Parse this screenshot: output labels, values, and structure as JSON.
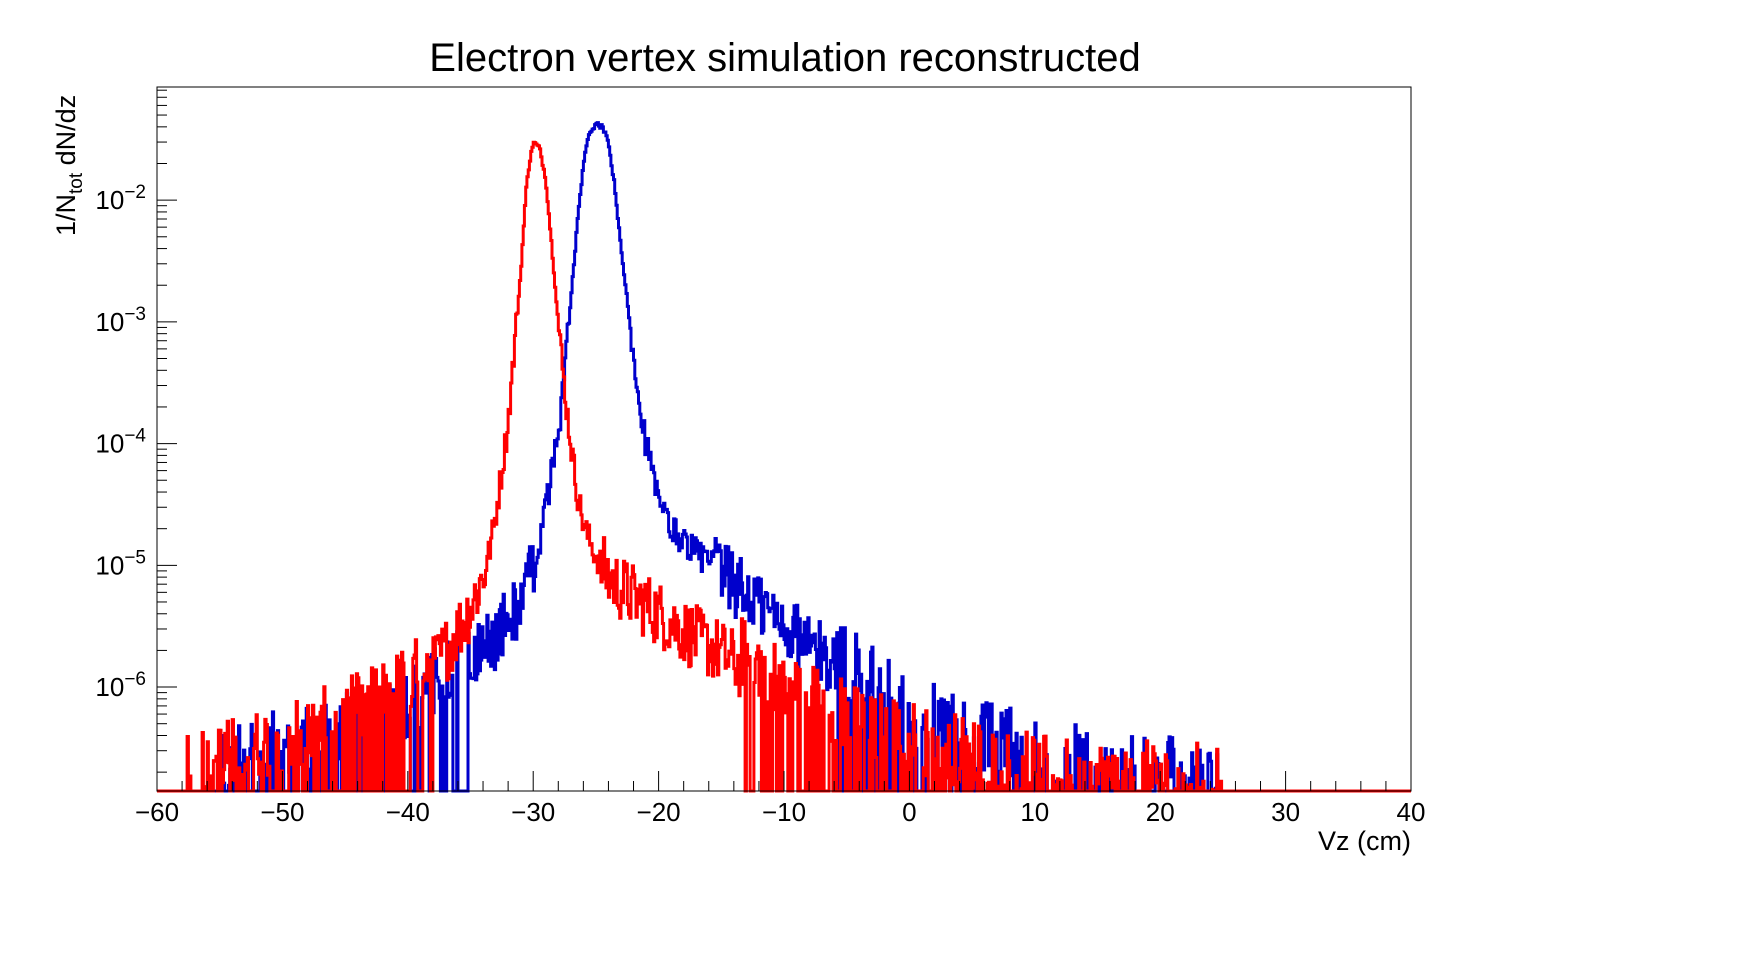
{
  "chart_data": {
    "type": "line",
    "title": "Electron vertex simulation reconstructed",
    "xlabel": "Vz (cm)",
    "ylabel": {
      "main": "1/N",
      "sub": "tot",
      "rest": " dN/dz"
    },
    "xlim": [
      -60,
      40
    ],
    "ylim": [
      1.4e-07,
      0.085
    ],
    "y_scale": "log",
    "x_ticks": [
      {
        "value": -60,
        "label": "−60"
      },
      {
        "value": -50,
        "label": "−50"
      },
      {
        "value": -40,
        "label": "−40"
      },
      {
        "value": -30,
        "label": "−30"
      },
      {
        "value": -20,
        "label": "−20"
      },
      {
        "value": -10,
        "label": "−10"
      },
      {
        "value": 0,
        "label": "0"
      },
      {
        "value": 10,
        "label": "10"
      },
      {
        "value": 20,
        "label": "20"
      },
      {
        "value": 30,
        "label": "30"
      },
      {
        "value": 40,
        "label": "40"
      }
    ],
    "y_ticks": [
      {
        "value": 1e-06,
        "base": "10",
        "exp": "−6"
      },
      {
        "value": 1e-05,
        "base": "10",
        "exp": "−5"
      },
      {
        "value": 0.0001,
        "base": "10",
        "exp": "−4"
      },
      {
        "value": 0.001,
        "base": "10",
        "exp": "−3"
      },
      {
        "value": 0.01,
        "base": "10",
        "exp": "−2"
      }
    ],
    "grid": false,
    "legend": "none",
    "series": [
      {
        "color": "#0000cc",
        "x": [
          -55,
          -52,
          -50,
          -48,
          -46,
          -44,
          -42,
          -40,
          -38,
          -36,
          -35,
          -34,
          -33,
          -32,
          -31,
          -30,
          -29.5,
          -29,
          -28.5,
          -28,
          -27.5,
          -27,
          -26.5,
          -26,
          -25.5,
          -25,
          -24.5,
          -24,
          -23.5,
          -23,
          -22.5,
          -22,
          -21.5,
          -21,
          -20.5,
          -20,
          -19,
          -18,
          -17,
          -16,
          -15,
          -14,
          -13,
          -12,
          -11,
          -10,
          -9,
          -8,
          -7,
          -6,
          -5,
          -4,
          -3,
          -2,
          -1,
          0,
          2,
          4,
          6,
          8,
          10,
          12,
          14,
          16,
          18,
          20,
          22,
          25
        ],
        "y": [
          1.6e-07,
          2.2e-07,
          2.5e-07,
          2.8e-07,
          3.2e-07,
          3.6e-07,
          4.5e-07,
          5.5e-07,
          8e-07,
          1.2e-06,
          1.5e-06,
          2e-06,
          2.6e-06,
          3.5e-06,
          5e-06,
          9e-06,
          1.5e-05,
          3e-05,
          6e-05,
          0.00012,
          0.0004,
          0.0015,
          0.006,
          0.02,
          0.036,
          0.042,
          0.04,
          0.03,
          0.013,
          0.004,
          0.0015,
          0.00055,
          0.00022,
          0.0001,
          6e-05,
          3.2e-05,
          2e-05,
          1.6e-05,
          1.3e-05,
          1.05e-05,
          8.5e-06,
          7e-06,
          5.8e-06,
          4.8e-06,
          4e-06,
          3.3e-06,
          2.7e-06,
          2.2e-06,
          1.8e-06,
          1.5e-06,
          1.2e-06,
          1e-06,
          8.5e-07,
          7e-07,
          5.8e-07,
          5e-07,
          4e-07,
          3.5e-07,
          3e-07,
          2.6e-07,
          2.3e-07,
          2e-07,
          1.8e-07,
          1.6e-07,
          1.5e-07,
          1.5e-07,
          1.5e-07,
          1.4e-07
        ]
      },
      {
        "color": "#ff0000",
        "x": [
          -58,
          -55,
          -52,
          -50,
          -48,
          -46,
          -44,
          -42,
          -40,
          -39,
          -38,
          -37,
          -36,
          -35,
          -34,
          -33.5,
          -33,
          -32.5,
          -32,
          -31.5,
          -31,
          -30.5,
          -30,
          -29.5,
          -29,
          -28.5,
          -28,
          -27.5,
          -27,
          -26.5,
          -26,
          -25.5,
          -25,
          -24,
          -23,
          -22,
          -21,
          -20,
          -19,
          -18,
          -17,
          -16,
          -15,
          -14,
          -13,
          -12,
          -11,
          -10,
          -9,
          -8,
          -7,
          -6,
          -5,
          -4,
          -2,
          0,
          2,
          4,
          6,
          8,
          10,
          12,
          14,
          16,
          20,
          25
        ],
        "y": [
          1.5e-07,
          2e-07,
          2.5e-07,
          3e-07,
          3.5e-07,
          4e-07,
          5e-07,
          6.5e-07,
          8.5e-07,
          1.05e-06,
          1.4e-06,
          2e-06,
          2.9e-06,
          4.5e-06,
          8e-06,
          1.3e-05,
          2.5e-05,
          6e-05,
          0.00015,
          0.0006,
          0.0025,
          0.015,
          0.03,
          0.027,
          0.015,
          0.004,
          0.001,
          0.00028,
          0.0001,
          4e-05,
          2.2e-05,
          1.6e-05,
          1.2e-05,
          8e-06,
          6.5e-06,
          5.5e-06,
          4.7e-06,
          4e-06,
          3.4e-06,
          2.9e-06,
          2.5e-06,
          2.2e-06,
          1.9e-06,
          1.6e-06,
          1.4e-06,
          1.2e-06,
          1e-06,
          8.5e-07,
          7.5e-07,
          6.5e-07,
          5.7e-07,
          5e-07,
          4.4e-07,
          3.9e-07,
          3.4e-07,
          3e-07,
          2.6e-07,
          2.3e-07,
          2e-07,
          1.8e-07,
          1.6e-07,
          1.5e-07,
          1.4e-07,
          1.4e-07,
          1.4e-07,
          1.4e-07
        ]
      }
    ]
  }
}
